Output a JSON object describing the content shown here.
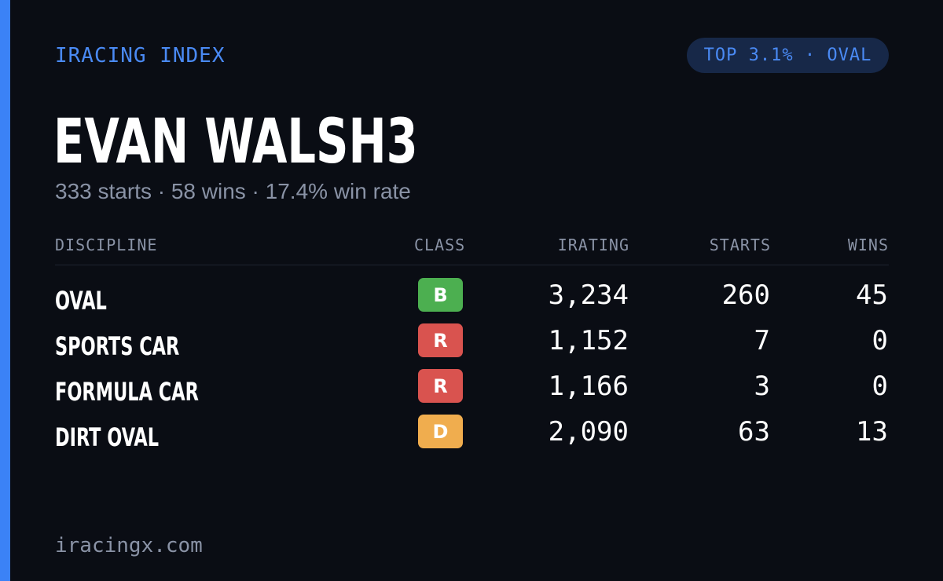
{
  "brand": "IRACING INDEX",
  "badge": "TOP 3.1% · OVAL",
  "driver": {
    "name": "EVAN WALSH3",
    "summary": "333 starts · 58 wins · 17.4% win rate"
  },
  "table": {
    "headers": {
      "discipline": "DISCIPLINE",
      "class": "CLASS",
      "irating": "IRATING",
      "starts": "STARTS",
      "wins": "WINS"
    },
    "rows": [
      {
        "discipline": "OVAL",
        "class": "B",
        "class_color": "#4caf50",
        "irating": "3,234",
        "starts": "260",
        "wins": "45"
      },
      {
        "discipline": "SPORTS CAR",
        "class": "R",
        "class_color": "#d9534f",
        "irating": "1,152",
        "starts": "7",
        "wins": "0"
      },
      {
        "discipline": "FORMULA CAR",
        "class": "R",
        "class_color": "#d9534f",
        "irating": "1,166",
        "starts": "3",
        "wins": "0"
      },
      {
        "discipline": "DIRT OVAL",
        "class": "D",
        "class_color": "#f0ad4e",
        "irating": "2,090",
        "starts": "63",
        "wins": "13"
      }
    ]
  },
  "footer": "iracingx.com",
  "colors": {
    "accent": "#3b82f6",
    "background": "#0a0d14",
    "muted": "#8a93a6"
  }
}
